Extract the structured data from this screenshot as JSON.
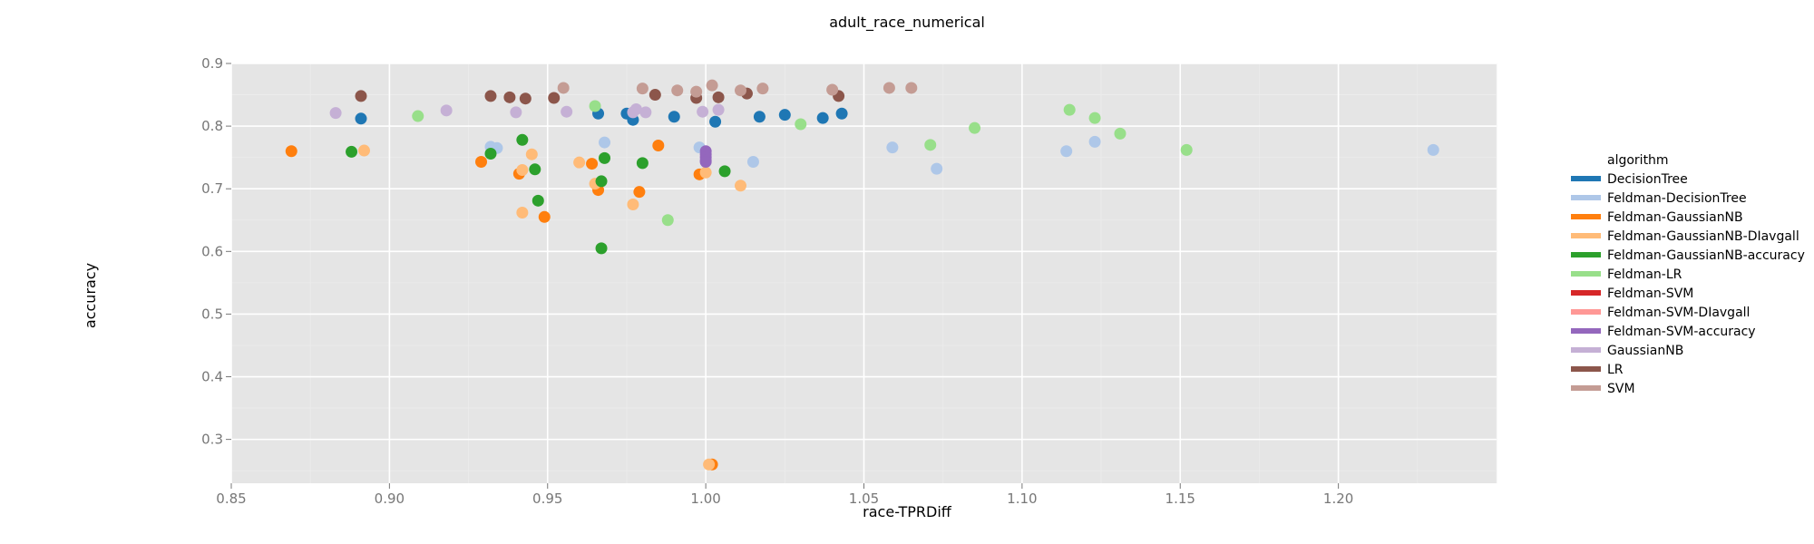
{
  "chart_data": {
    "type": "scatter",
    "title": "adult_race_numerical",
    "xlabel": "race-TPRDiff",
    "ylabel": "accuracy",
    "xlim": [
      0.85,
      1.25
    ],
    "ylim": [
      0.23,
      0.9
    ],
    "x_ticks": [
      "0.85",
      "0.90",
      "0.95",
      "1.00",
      "1.05",
      "1.10",
      "1.15",
      "1.20"
    ],
    "y_ticks": [
      "0.3",
      "0.4",
      "0.5",
      "0.6",
      "0.7",
      "0.8",
      "0.9"
    ],
    "grid": true,
    "legend": {
      "title": "algorithm",
      "placement": "right"
    },
    "series": [
      {
        "name": "DecisionTree",
        "color": "#1f77b4",
        "points": [
          [
            0.891,
            0.812
          ],
          [
            0.966,
            0.82
          ],
          [
            0.975,
            0.82
          ],
          [
            0.977,
            0.81
          ],
          [
            0.99,
            0.815
          ],
          [
            1.003,
            0.807
          ],
          [
            1.017,
            0.815
          ],
          [
            1.025,
            0.818
          ],
          [
            1.037,
            0.813
          ],
          [
            1.043,
            0.82
          ]
        ]
      },
      {
        "name": "Feldman-DecisionTree",
        "color": "#aec7e8",
        "points": [
          [
            0.932,
            0.767
          ],
          [
            0.934,
            0.765
          ],
          [
            0.968,
            0.774
          ],
          [
            0.998,
            0.766
          ],
          [
            1.015,
            0.743
          ],
          [
            1.059,
            0.766
          ],
          [
            1.073,
            0.732
          ],
          [
            1.114,
            0.76
          ],
          [
            1.123,
            0.775
          ],
          [
            1.23,
            0.762
          ]
        ]
      },
      {
        "name": "Feldman-GaussianNB",
        "color": "#ff7f0e",
        "points": [
          [
            0.869,
            0.76
          ],
          [
            0.929,
            0.743
          ],
          [
            0.941,
            0.724
          ],
          [
            0.949,
            0.655
          ],
          [
            0.964,
            0.74
          ],
          [
            0.966,
            0.698
          ],
          [
            0.979,
            0.695
          ],
          [
            0.985,
            0.769
          ],
          [
            0.998,
            0.723
          ],
          [
            1.002,
            0.26
          ]
        ]
      },
      {
        "name": "Feldman-GaussianNB-DIavgall",
        "color": "#ffbb78",
        "points": [
          [
            0.892,
            0.761
          ],
          [
            0.942,
            0.73
          ],
          [
            0.942,
            0.662
          ],
          [
            0.945,
            0.755
          ],
          [
            0.96,
            0.742
          ],
          [
            0.965,
            0.708
          ],
          [
            0.977,
            0.675
          ],
          [
            1.0,
            0.726
          ],
          [
            1.001,
            0.26
          ],
          [
            1.011,
            0.705
          ]
        ]
      },
      {
        "name": "Feldman-GaussianNB-accuracy",
        "color": "#2ca02c",
        "points": [
          [
            0.888,
            0.759
          ],
          [
            0.932,
            0.756
          ],
          [
            0.942,
            0.778
          ],
          [
            0.946,
            0.731
          ],
          [
            0.947,
            0.681
          ],
          [
            0.967,
            0.605
          ],
          [
            0.967,
            0.712
          ],
          [
            0.968,
            0.749
          ],
          [
            0.98,
            0.741
          ],
          [
            1.006,
            0.728
          ]
        ]
      },
      {
        "name": "Feldman-LR",
        "color": "#98df8a",
        "points": [
          [
            0.909,
            0.816
          ],
          [
            0.965,
            0.832
          ],
          [
            0.988,
            0.65
          ],
          [
            1.03,
            0.803
          ],
          [
            1.071,
            0.77
          ],
          [
            1.085,
            0.797
          ],
          [
            1.115,
            0.826
          ],
          [
            1.123,
            0.813
          ],
          [
            1.131,
            0.788
          ],
          [
            1.152,
            0.762
          ]
        ]
      },
      {
        "name": "Feldman-SVM",
        "color": "#d62728",
        "points": []
      },
      {
        "name": "Feldman-SVM-DIavgall",
        "color": "#ff9896",
        "points": []
      },
      {
        "name": "Feldman-SVM-accuracy",
        "color": "#9467bd",
        "points": [
          [
            1.0,
            0.76
          ],
          [
            1.0,
            0.755
          ],
          [
            1.0,
            0.75
          ],
          [
            1.0,
            0.745
          ],
          [
            1.0,
            0.743
          ]
        ]
      },
      {
        "name": "GaussianNB",
        "color": "#c5b0d5",
        "points": [
          [
            0.883,
            0.821
          ],
          [
            0.918,
            0.825
          ],
          [
            0.94,
            0.822
          ],
          [
            0.956,
            0.823
          ],
          [
            0.977,
            0.822
          ],
          [
            0.978,
            0.827
          ],
          [
            0.981,
            0.822
          ],
          [
            0.999,
            0.823
          ],
          [
            1.004,
            0.826
          ]
        ]
      },
      {
        "name": "LR",
        "color": "#8c564b",
        "points": [
          [
            0.891,
            0.848
          ],
          [
            0.932,
            0.848
          ],
          [
            0.938,
            0.846
          ],
          [
            0.943,
            0.844
          ],
          [
            0.952,
            0.845
          ],
          [
            0.984,
            0.85
          ],
          [
            0.997,
            0.845
          ],
          [
            1.004,
            0.846
          ],
          [
            1.013,
            0.852
          ],
          [
            1.042,
            0.848
          ]
        ]
      },
      {
        "name": "SVM",
        "color": "#c49c94",
        "points": [
          [
            0.955,
            0.861
          ],
          [
            0.98,
            0.86
          ],
          [
            0.991,
            0.857
          ],
          [
            0.997,
            0.855
          ],
          [
            1.002,
            0.865
          ],
          [
            1.011,
            0.857
          ],
          [
            1.018,
            0.86
          ],
          [
            1.04,
            0.858
          ],
          [
            1.058,
            0.861
          ],
          [
            1.065,
            0.861
          ]
        ]
      }
    ]
  }
}
